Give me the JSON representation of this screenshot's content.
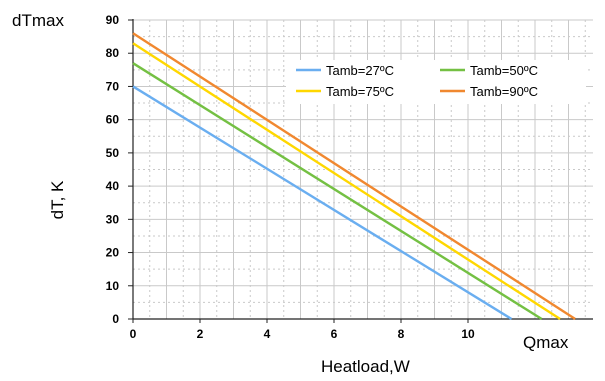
{
  "chart_data": {
    "type": "line",
    "ylabel": "dT, K",
    "xlabel": "Heatload,W",
    "ymax_label": "dTmax",
    "xmax_label": "Qmax",
    "x_ticks": [
      "0",
      "2",
      "4",
      "6",
      "8",
      "10"
    ],
    "y_ticks": [
      "0",
      "10",
      "20",
      "30",
      "40",
      "50",
      "60",
      "70",
      "80",
      "90"
    ],
    "xlim": [
      0,
      13.2
    ],
    "ylim": [
      0,
      90
    ],
    "grid": true,
    "legend_position": "top-right",
    "series": [
      {
        "name": "Tamb=27ºC",
        "color": "#6aaef0",
        "x": [
          0,
          11.3
        ],
        "y": [
          70,
          0
        ]
      },
      {
        "name": "Tamb=50ºC",
        "color": "#74c043",
        "x": [
          0,
          12.2
        ],
        "y": [
          77,
          0
        ]
      },
      {
        "name": "Tamb=75ºC",
        "color": "#ffd700",
        "x": [
          0,
          12.75
        ],
        "y": [
          83,
          0
        ]
      },
      {
        "name": "Tamb=90ºC",
        "color": "#f0882f",
        "x": [
          0,
          13.2
        ],
        "y": [
          86,
          0
        ]
      }
    ]
  }
}
